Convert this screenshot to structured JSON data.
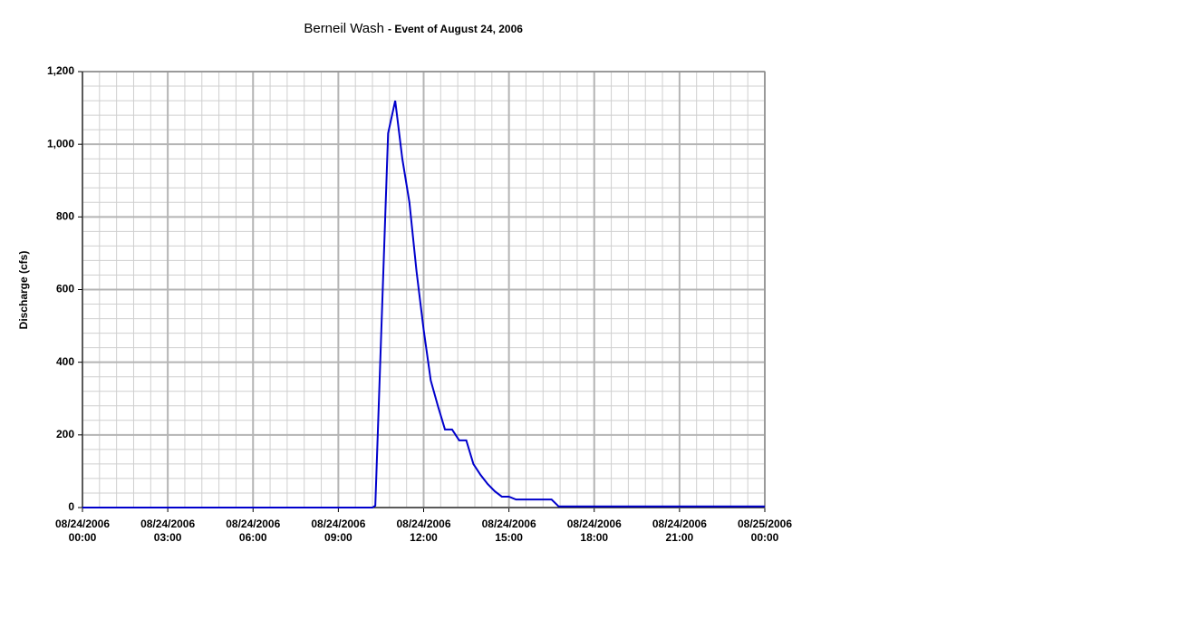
{
  "chart_data": {
    "type": "line",
    "title": "Berneil Wash",
    "subtitle": "- Event of August 24, 2006",
    "y_label": "Discharge (cfs)",
    "x": [
      0,
      10.2,
      10.3,
      10.75,
      11.0,
      11.25,
      11.5,
      11.75,
      12.0,
      12.25,
      12.5,
      12.75,
      13.0,
      13.25,
      13.5,
      13.75,
      14.0,
      14.25,
      14.5,
      14.75,
      15.0,
      15.25,
      16.5,
      16.75,
      24
    ],
    "values": [
      0,
      0,
      5,
      1030,
      1120,
      960,
      840,
      650,
      490,
      350,
      280,
      215,
      215,
      185,
      185,
      120,
      90,
      65,
      45,
      30,
      30,
      22,
      22,
      3,
      3
    ],
    "color": "#0000cc",
    "xlim": [
      0,
      24
    ],
    "xticks": [
      {
        "value": 0,
        "label": "08/24/2006\n00:00"
      },
      {
        "value": 3,
        "label": "08/24/2006\n03:00"
      },
      {
        "value": 6,
        "label": "08/24/2006\n06:00"
      },
      {
        "value": 9,
        "label": "08/24/2006\n09:00"
      },
      {
        "value": 12,
        "label": "08/24/2006\n12:00"
      },
      {
        "value": 15,
        "label": "08/24/2006\n15:00"
      },
      {
        "value": 18,
        "label": "08/24/2006\n18:00"
      },
      {
        "value": 21,
        "label": "08/24/2006\n21:00"
      },
      {
        "value": 24,
        "label": "08/25/2006\n00:00"
      }
    ],
    "ylim": [
      0,
      1200
    ],
    "yticks": [
      0,
      200,
      400,
      600,
      800,
      {
        "value": 1000,
        "label": "1,000"
      },
      {
        "value": 1200,
        "label": "1,200"
      }
    ],
    "grid": true
  }
}
